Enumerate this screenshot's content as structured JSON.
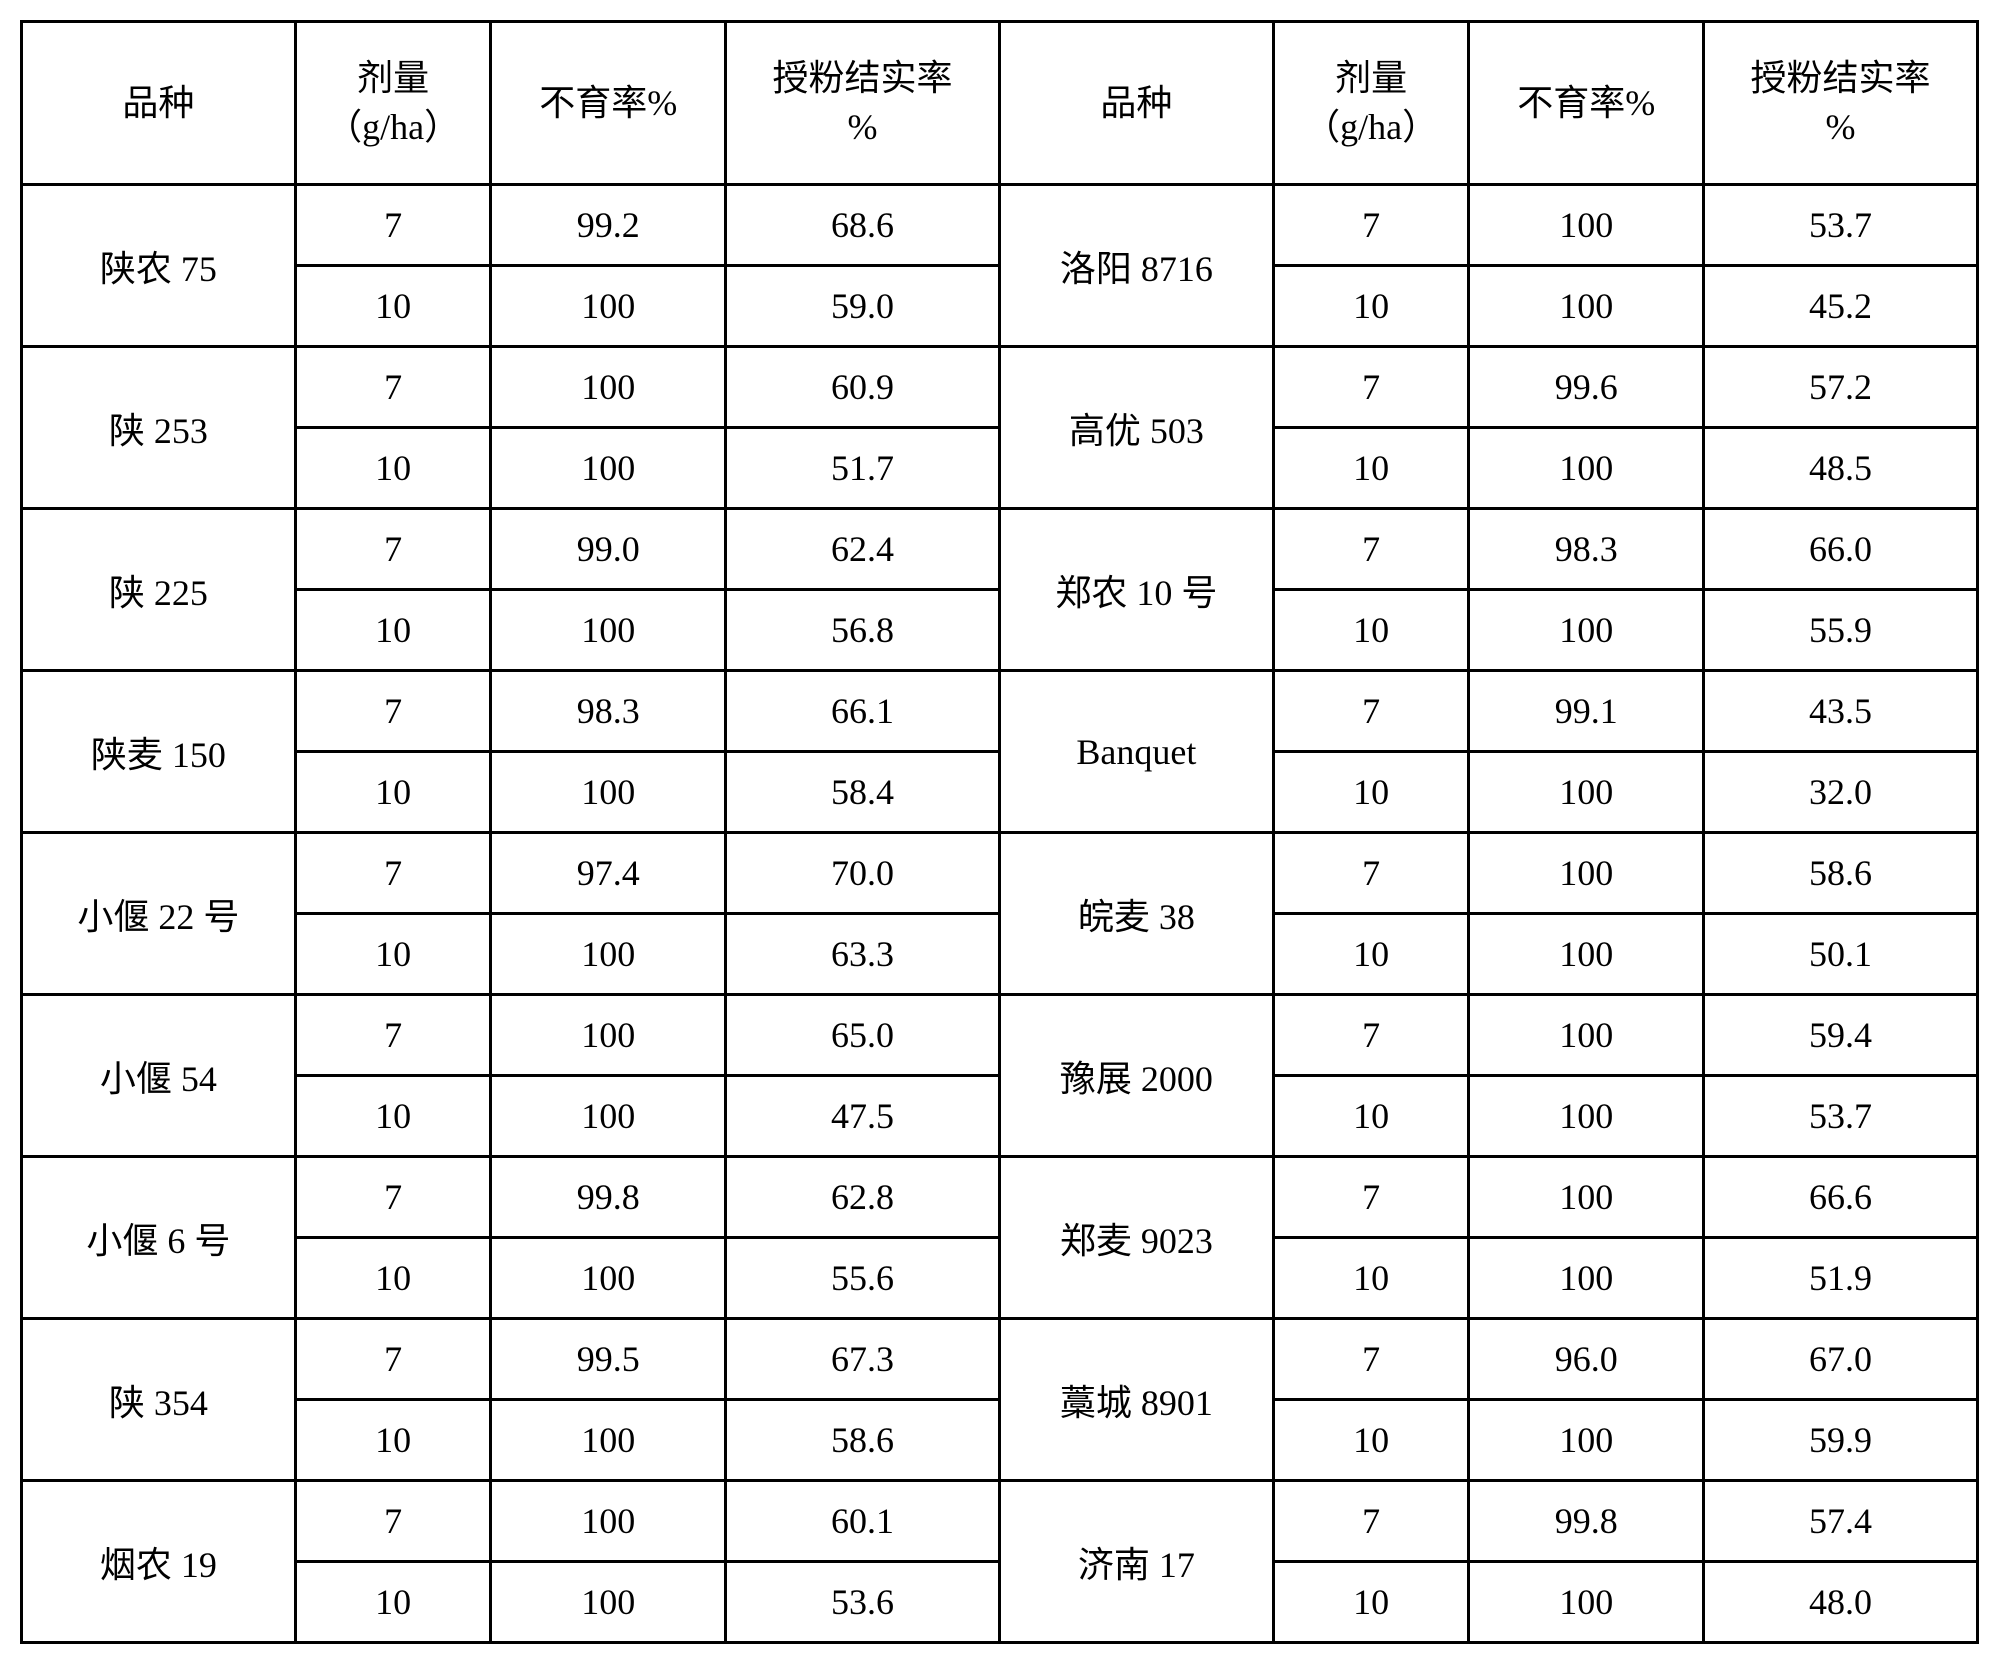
{
  "headers": {
    "variety": "品种",
    "dose": "剂量\n（g/ha）",
    "sterility": "不育率%",
    "seedset": "授粉结实率\n%"
  },
  "groups": [
    {
      "leftName": "陕农 75",
      "left": [
        {
          "dose": "7",
          "ster": "99.2",
          "seed": "68.6"
        },
        {
          "dose": "10",
          "ster": "100",
          "seed": "59.0"
        }
      ],
      "rightName": "洛阳 8716",
      "right": [
        {
          "dose": "7",
          "ster": "100",
          "seed": "53.7"
        },
        {
          "dose": "10",
          "ster": "100",
          "seed": "45.2"
        }
      ]
    },
    {
      "leftName": "陕 253",
      "left": [
        {
          "dose": "7",
          "ster": "100",
          "seed": "60.9"
        },
        {
          "dose": "10",
          "ster": "100",
          "seed": "51.7"
        }
      ],
      "rightName": "高优 503",
      "right": [
        {
          "dose": "7",
          "ster": "99.6",
          "seed": "57.2"
        },
        {
          "dose": "10",
          "ster": "100",
          "seed": "48.5"
        }
      ]
    },
    {
      "leftName": "陕 225",
      "left": [
        {
          "dose": "7",
          "ster": "99.0",
          "seed": "62.4"
        },
        {
          "dose": "10",
          "ster": "100",
          "seed": "56.8"
        }
      ],
      "rightName": "郑农 10 号",
      "right": [
        {
          "dose": "7",
          "ster": "98.3",
          "seed": "66.0"
        },
        {
          "dose": "10",
          "ster": "100",
          "seed": "55.9"
        }
      ]
    },
    {
      "leftName": "陕麦 150",
      "left": [
        {
          "dose": "7",
          "ster": "98.3",
          "seed": "66.1"
        },
        {
          "dose": "10",
          "ster": "100",
          "seed": "58.4"
        }
      ],
      "rightName": "Banquet",
      "right": [
        {
          "dose": "7",
          "ster": "99.1",
          "seed": "43.5"
        },
        {
          "dose": "10",
          "ster": "100",
          "seed": "32.0"
        }
      ]
    },
    {
      "leftName": "小偃 22 号",
      "left": [
        {
          "dose": "7",
          "ster": "97.4",
          "seed": "70.0"
        },
        {
          "dose": "10",
          "ster": "100",
          "seed": "63.3"
        }
      ],
      "rightName": "皖麦 38",
      "right": [
        {
          "dose": "7",
          "ster": "100",
          "seed": "58.6"
        },
        {
          "dose": "10",
          "ster": "100",
          "seed": "50.1"
        }
      ]
    },
    {
      "leftName": "小偃 54",
      "left": [
        {
          "dose": "7",
          "ster": "100",
          "seed": "65.0"
        },
        {
          "dose": "10",
          "ster": "100",
          "seed": "47.5"
        }
      ],
      "rightName": "豫展 2000",
      "right": [
        {
          "dose": "7",
          "ster": "100",
          "seed": "59.4"
        },
        {
          "dose": "10",
          "ster": "100",
          "seed": "53.7"
        }
      ]
    },
    {
      "leftName": "小偃 6 号",
      "left": [
        {
          "dose": "7",
          "ster": "99.8",
          "seed": "62.8"
        },
        {
          "dose": "10",
          "ster": "100",
          "seed": "55.6"
        }
      ],
      "rightName": "郑麦 9023",
      "right": [
        {
          "dose": "7",
          "ster": "100",
          "seed": "66.6"
        },
        {
          "dose": "10",
          "ster": "100",
          "seed": "51.9"
        }
      ]
    },
    {
      "leftName": "陕 354",
      "left": [
        {
          "dose": "7",
          "ster": "99.5",
          "seed": "67.3"
        },
        {
          "dose": "10",
          "ster": "100",
          "seed": "58.6"
        }
      ],
      "rightName": "藁城 8901",
      "right": [
        {
          "dose": "7",
          "ster": "96.0",
          "seed": "67.0"
        },
        {
          "dose": "10",
          "ster": "100",
          "seed": "59.9"
        }
      ]
    },
    {
      "leftName": "烟农 19",
      "left": [
        {
          "dose": "7",
          "ster": "100",
          "seed": "60.1"
        },
        {
          "dose": "10",
          "ster": "100",
          "seed": "53.6"
        }
      ],
      "rightName": "济南  17",
      "right": [
        {
          "dose": "7",
          "ster": "99.8",
          "seed": "57.4"
        },
        {
          "dose": "10",
          "ster": "100",
          "seed": "48.0"
        }
      ]
    }
  ]
}
